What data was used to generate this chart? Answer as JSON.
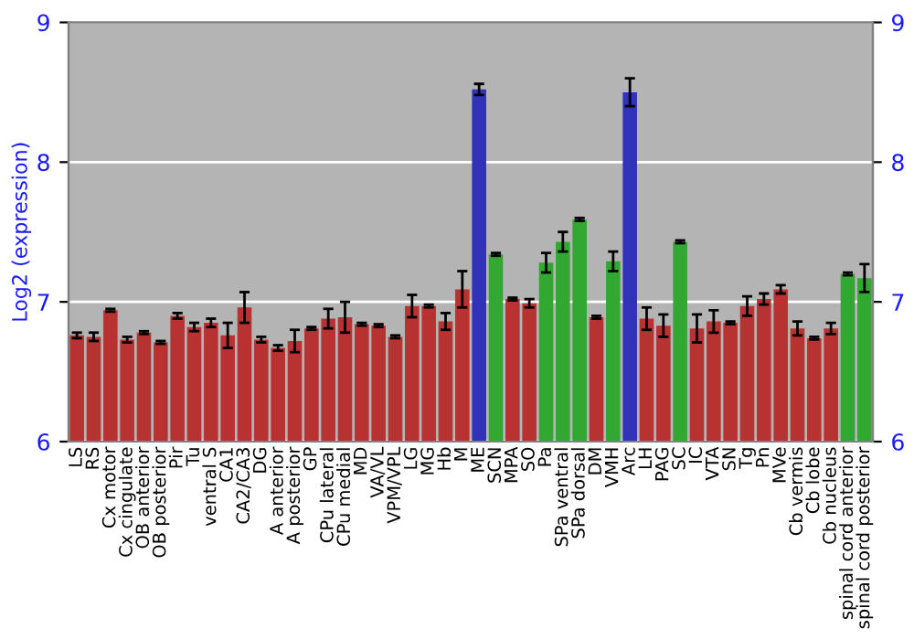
{
  "chart_data": {
    "type": "bar",
    "ylabel": "Log2 (expression)",
    "categories": [
      "LS",
      "RS",
      "Cx motor",
      "Cx cingulate",
      "OB anterior",
      "OB posterior",
      "Pir",
      "Tu",
      "ventral S",
      "CA1",
      "CA2/CA3",
      "DG",
      "A anterior",
      "A posterior",
      "GP",
      "CPu lateral",
      "CPu medial",
      "MD",
      "VA/VL",
      "VPM/VPL",
      "LG",
      "MG",
      "Hb",
      "M",
      "ME",
      "SCN",
      "MPA",
      "SO",
      "Pa",
      "SPa ventral",
      "SPa dorsal",
      "DM",
      "VMH",
      "Arc",
      "LH",
      "PAG",
      "SC",
      "IC",
      "VTA",
      "SN",
      "Tg",
      "Pn",
      "MVe",
      "Cb vermis",
      "Cb lobe",
      "Cb nucleus",
      "spinal cord anterior",
      "spinal cord posterior"
    ],
    "values": [
      6.76,
      6.75,
      6.94,
      6.73,
      6.78,
      6.71,
      6.9,
      6.82,
      6.85,
      6.76,
      6.96,
      6.73,
      6.67,
      6.72,
      6.81,
      6.88,
      6.89,
      6.84,
      6.83,
      6.75,
      6.97,
      6.97,
      6.86,
      7.09,
      8.52,
      7.34,
      7.02,
      6.99,
      7.28,
      7.43,
      7.59,
      6.89,
      7.29,
      8.5,
      6.88,
      6.83,
      7.43,
      6.81,
      6.86,
      6.85,
      6.97,
      7.02,
      7.09,
      6.81,
      6.74,
      6.81,
      7.2,
      7.17
    ],
    "errors": [
      0.02,
      0.03,
      0.01,
      0.02,
      0.01,
      0.01,
      0.02,
      0.03,
      0.03,
      0.09,
      0.11,
      0.02,
      0.02,
      0.08,
      0.01,
      0.07,
      0.11,
      0.01,
      0.01,
      0.01,
      0.08,
      0.01,
      0.06,
      0.13,
      0.04,
      0.01,
      0.01,
      0.03,
      0.07,
      0.07,
      0.01,
      0.01,
      0.07,
      0.1,
      0.08,
      0.08,
      0.01,
      0.1,
      0.08,
      0.01,
      0.07,
      0.04,
      0.03,
      0.05,
      0.01,
      0.04,
      0.01,
      0.1
    ],
    "colors": [
      "#b83232",
      "#b83232",
      "#b83232",
      "#b83232",
      "#b83232",
      "#b83232",
      "#b83232",
      "#b83232",
      "#b83232",
      "#b83232",
      "#b83232",
      "#b83232",
      "#b83232",
      "#b83232",
      "#b83232",
      "#b83232",
      "#b83232",
      "#b83232",
      "#b83232",
      "#b83232",
      "#b83232",
      "#b83232",
      "#b83232",
      "#b83232",
      "#3232b8",
      "#32a832",
      "#b83232",
      "#b83232",
      "#32a832",
      "#32a832",
      "#32a832",
      "#b83232",
      "#32a832",
      "#3232b8",
      "#b83232",
      "#b83232",
      "#32a832",
      "#b83232",
      "#b83232",
      "#b83232",
      "#b83232",
      "#b83232",
      "#b83232",
      "#b83232",
      "#b83232",
      "#b83232",
      "#32a832",
      "#32a832"
    ],
    "ylim": [
      6,
      9
    ],
    "yticks": [
      6,
      7,
      8,
      9
    ],
    "y2lim": [
      6,
      9
    ],
    "y2ticks": [
      6,
      7,
      8,
      9
    ],
    "grid": "y"
  }
}
